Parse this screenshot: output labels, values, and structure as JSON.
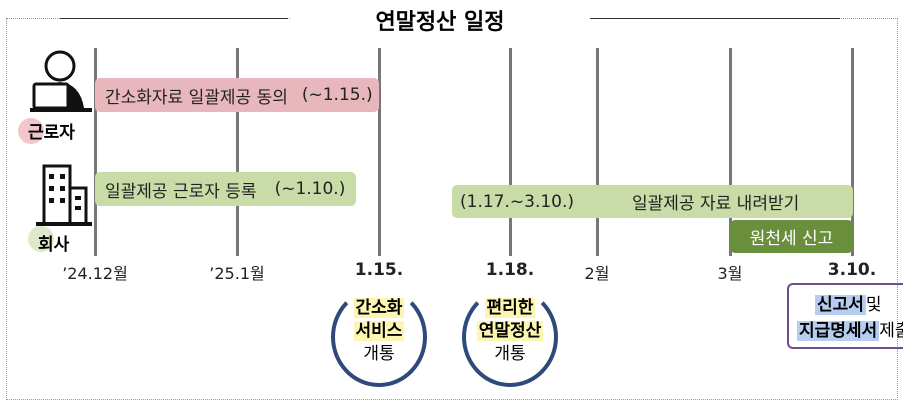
{
  "title": "연말정산 일정",
  "rows": [
    {
      "label": "근로자"
    },
    {
      "label": "회사"
    }
  ],
  "bars": [
    {
      "text": "간소화자료 일괄제공 동의",
      "period": "(~1.15.)"
    },
    {
      "text": "일괄제공 근로자 등록",
      "period": "(~1.10.)"
    },
    {
      "text": "일괄제공 자료 내려받기",
      "period": "(1.17.~3.10.)"
    },
    {
      "text": "원천세 신고"
    }
  ],
  "timeline": [
    "’24.12월",
    "’25.1월",
    "1.15.",
    "1.18.",
    "2월",
    "3월",
    "3.10."
  ],
  "milestones": [
    {
      "lines": [
        "간소화",
        "서비스",
        "개통"
      ]
    },
    {
      "lines": [
        "편리한",
        "연말정산",
        "개통"
      ]
    }
  ],
  "final": {
    "parts": [
      "신고서",
      "및",
      "지급명세서",
      "제출"
    ]
  }
}
